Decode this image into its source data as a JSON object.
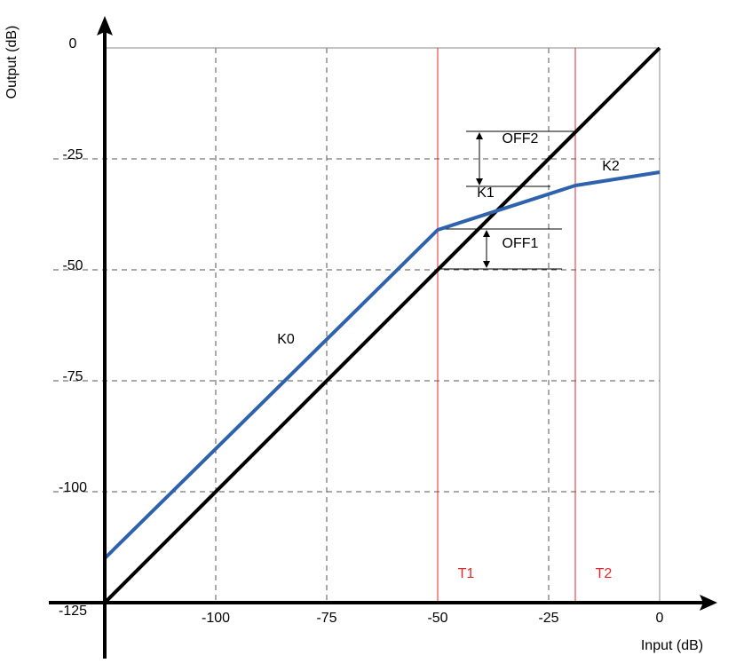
{
  "chart_data": {
    "type": "line",
    "x_label": "Input (dB)",
    "y_label": "Output (dB)",
    "xlim": [
      -125,
      0
    ],
    "ylim": [
      -125,
      0
    ],
    "xticks": [
      -100,
      -75,
      -50,
      -25,
      0
    ],
    "yticks": [
      0,
      -25,
      -50,
      -75,
      -100,
      -125
    ],
    "grid": true,
    "series": [
      {
        "color": "#000000",
        "x": [
          -125,
          0
        ],
        "values": [
          -125,
          0
        ]
      },
      {
        "color": "#2e62ad",
        "x": [
          -125,
          -50,
          -19,
          0
        ],
        "values": [
          -115,
          -41,
          -31,
          -28
        ]
      }
    ],
    "thresholds": [
      {
        "label": "T1",
        "value": -50,
        "color": "#e8262a"
      },
      {
        "label": "T2",
        "value": -19,
        "color": "#e8262a"
      }
    ],
    "annotations": [
      "K0",
      "K1",
      "K2",
      "OFF1",
      "OFF2"
    ]
  }
}
